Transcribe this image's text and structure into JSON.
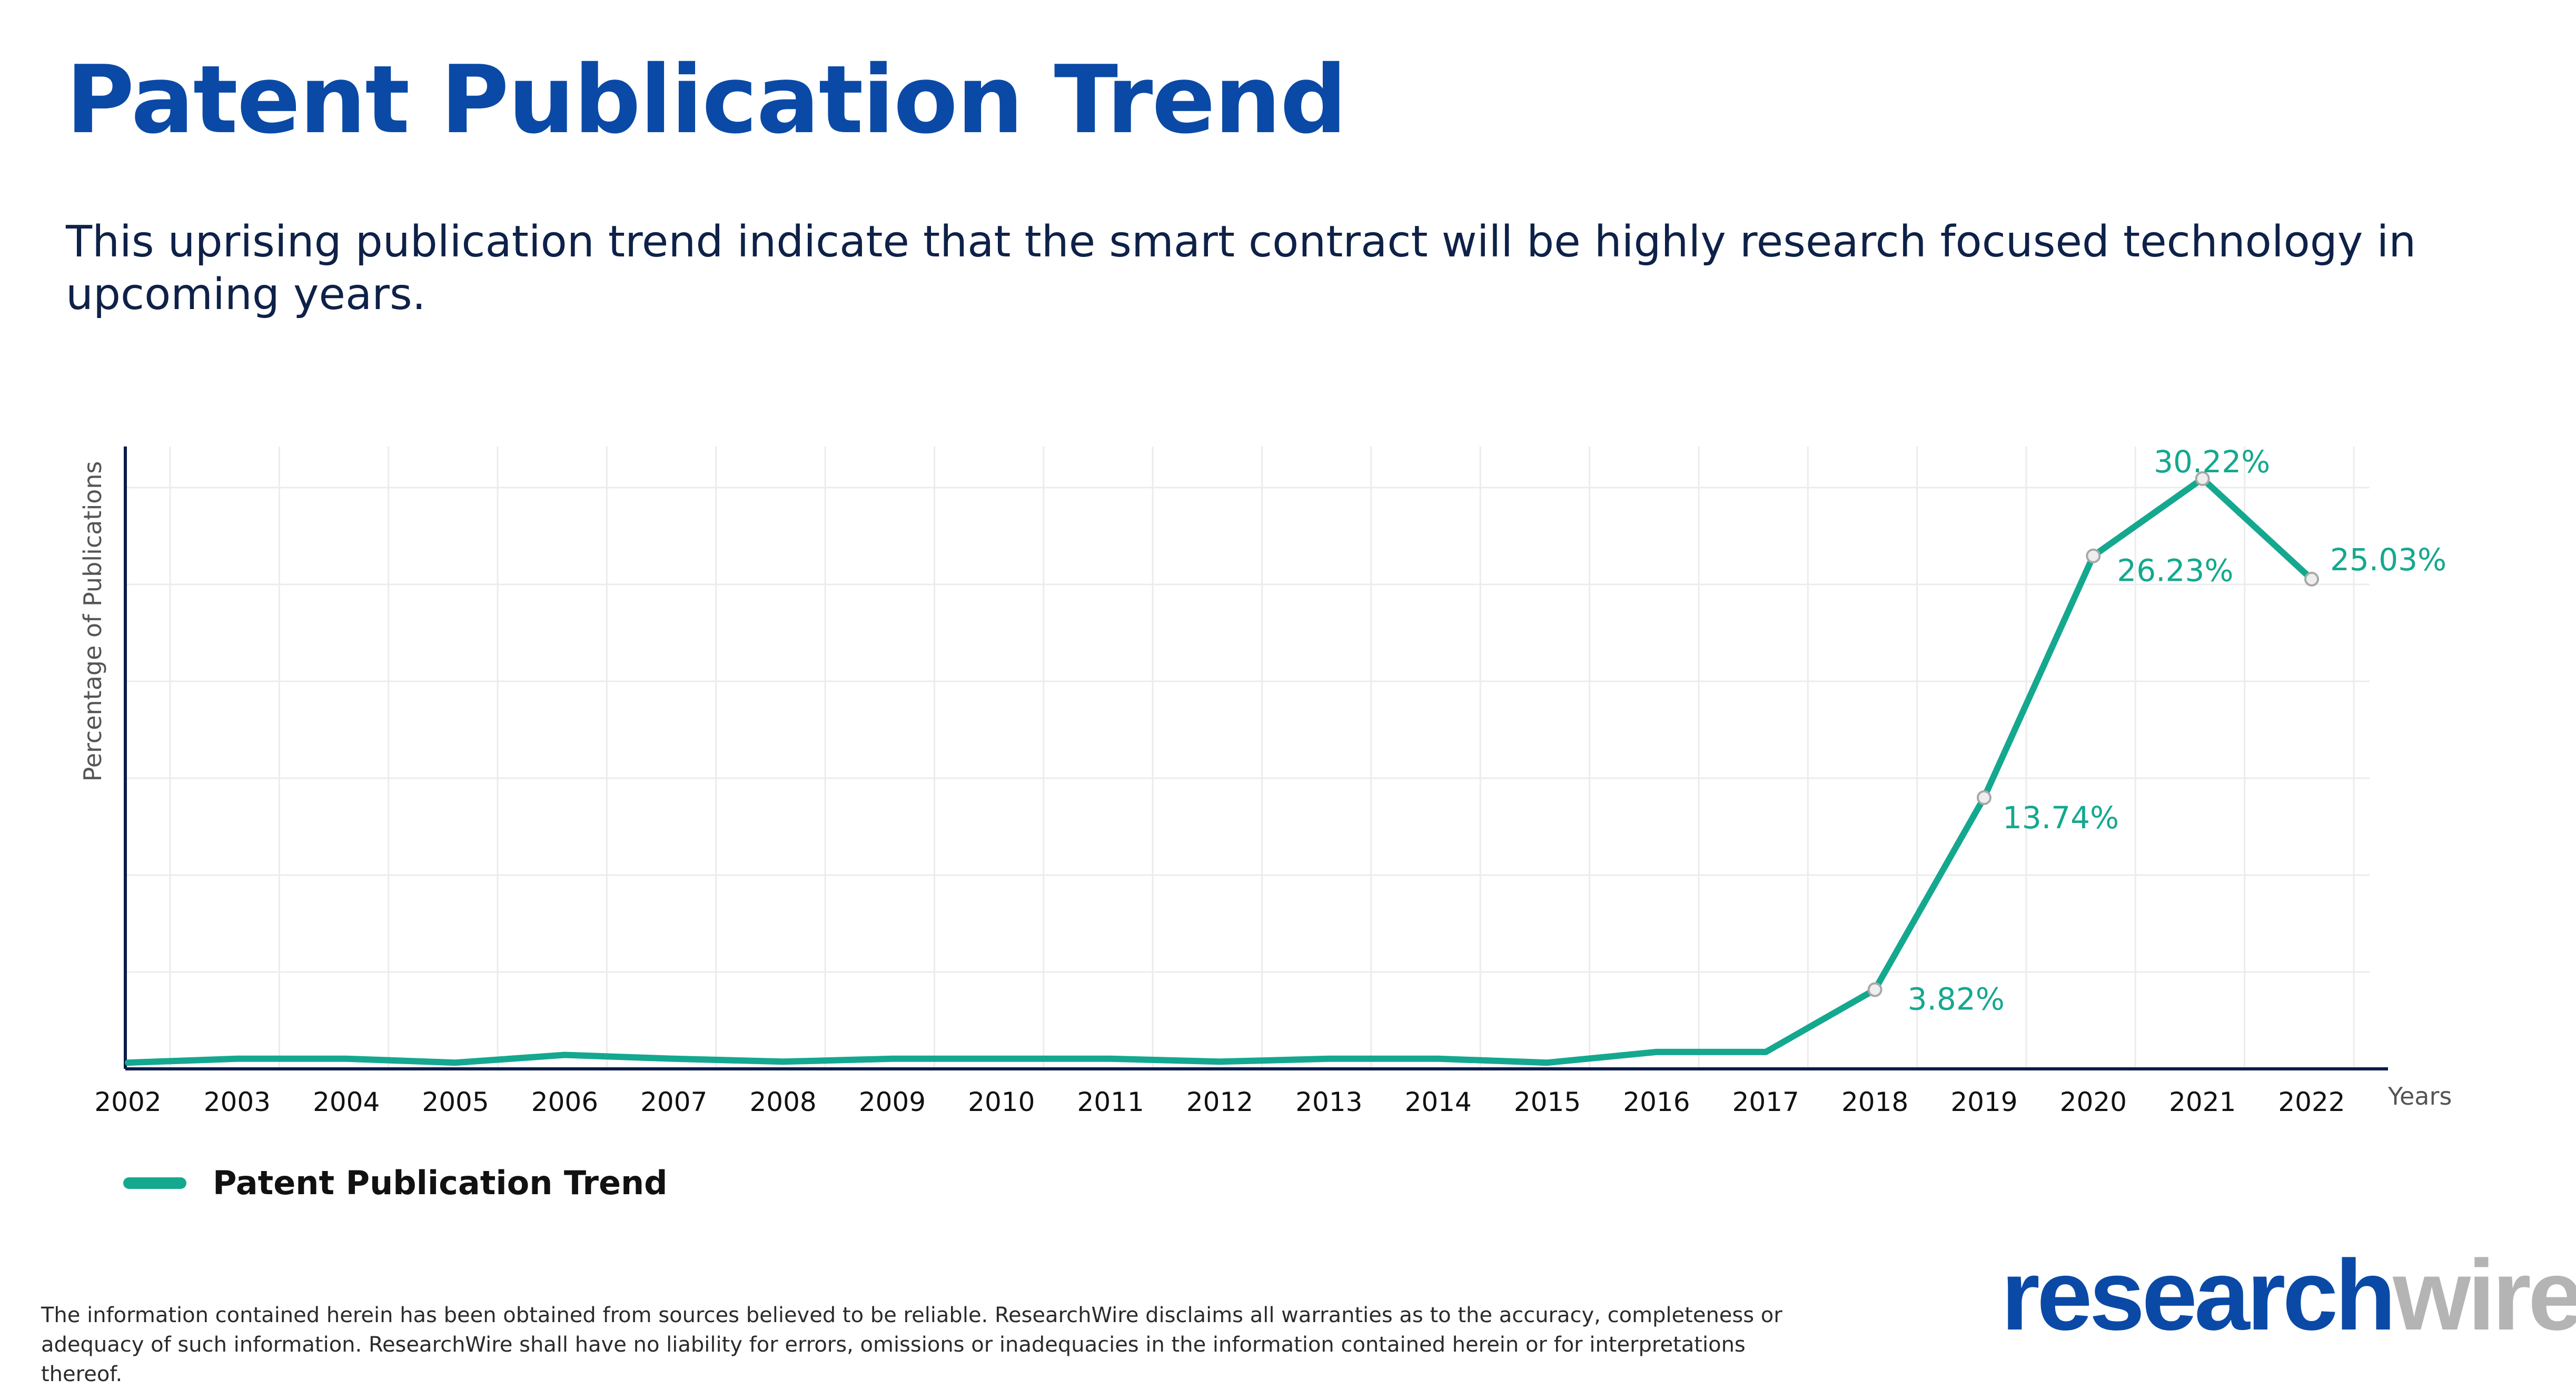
{
  "header": {
    "title": "Patent Publication Trend",
    "subtitle": "This uprising publication trend indicate that the smart contract will be highly research focused technology in upcoming years."
  },
  "chart_data": {
    "type": "line",
    "ylabel": "Percentage of Publications",
    "xlabel": "Years",
    "categories": [
      "2002",
      "2003",
      "2004",
      "2005",
      "2006",
      "2007",
      "2008",
      "2009",
      "2010",
      "2011",
      "2012",
      "2013",
      "2014",
      "2015",
      "2016",
      "2017",
      "2018",
      "2019",
      "2020",
      "2021",
      "2022"
    ],
    "series": [
      {
        "name": "Patent Publication Trend",
        "values": [
          0.05,
          0.25,
          0.25,
          0.05,
          0.45,
          0.25,
          0.1,
          0.25,
          0.25,
          0.25,
          0.1,
          0.25,
          0.25,
          0.05,
          0.6,
          0.6,
          3.82,
          13.74,
          26.23,
          30.22,
          25.03
        ],
        "point_labels": {
          "2018": "3.82%",
          "2019": "13.74%",
          "2020": "26.23%",
          "2021": "30.22%",
          "2022": "25.03%"
        }
      }
    ],
    "ylim": [
      0,
      31.5
    ],
    "grid": true,
    "legend": "bottom-left",
    "colors": {
      "line": "#14a88f",
      "axis": "#0b1b48",
      "grid": "#ececec",
      "marker_fill": "#eeeeee",
      "marker_stroke": "#a8a8a8"
    }
  },
  "legend": {
    "label": "Patent Publication Trend"
  },
  "footer": {
    "disclaimer_line1": "The information contained herein has been obtained from sources believed to be reliable. ResearchWire disclaims all warranties as to the accuracy, completeness or",
    "disclaimer_line2": "adequacy of such information. ResearchWire shall have no liability for errors, omissions or inadequacies in the information contained herein or for interpretations thereof."
  },
  "logo": {
    "part1": "research",
    "part2": "wire"
  }
}
